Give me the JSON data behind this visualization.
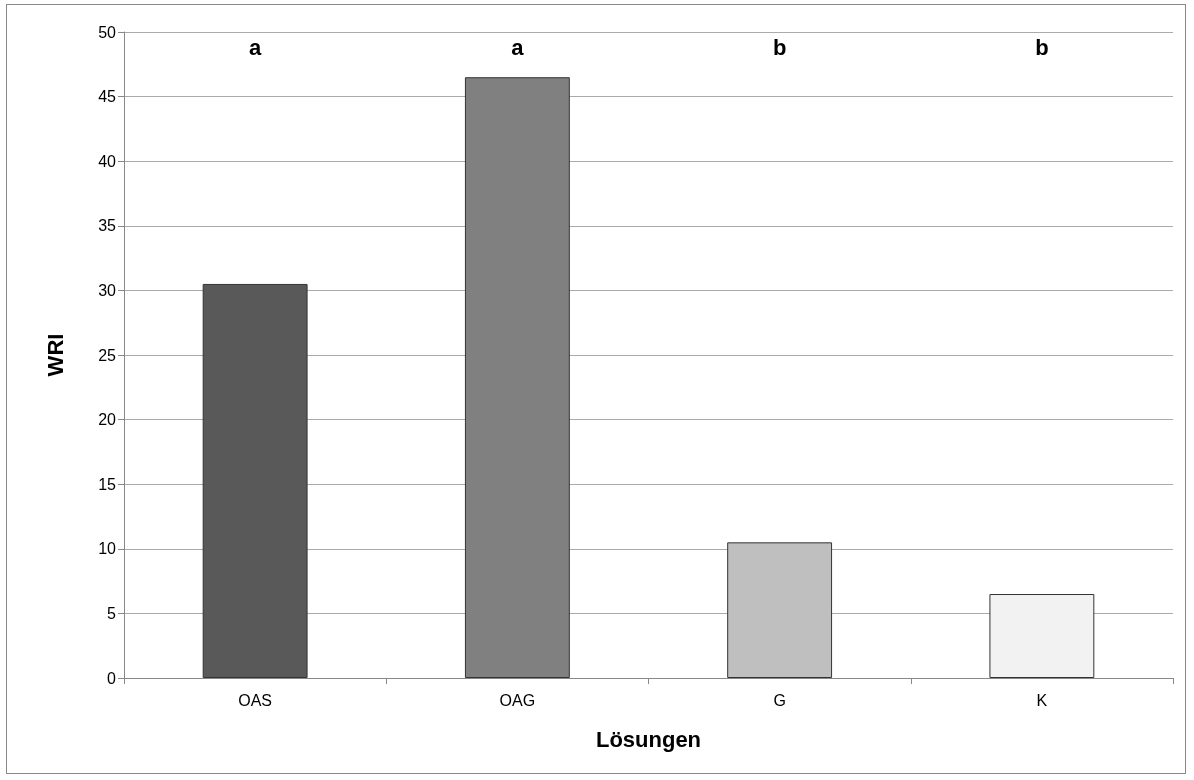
{
  "chart_data": {
    "type": "bar",
    "xlabel": "Lösungen",
    "ylabel": "WRI",
    "categories": [
      "OAS",
      "OAG",
      "G",
      "K"
    ],
    "values": [
      30.5,
      46.5,
      10.5,
      6.5
    ],
    "colors": [
      "#595959",
      "#808080",
      "#bfbfbf",
      "#f2f2f2"
    ],
    "ylim": [
      0,
      50
    ],
    "yticks": [
      0,
      5,
      10,
      15,
      20,
      25,
      30,
      35,
      40,
      45,
      50
    ],
    "grid": "y",
    "annotations": [
      "a",
      "a",
      "b",
      "b"
    ]
  }
}
